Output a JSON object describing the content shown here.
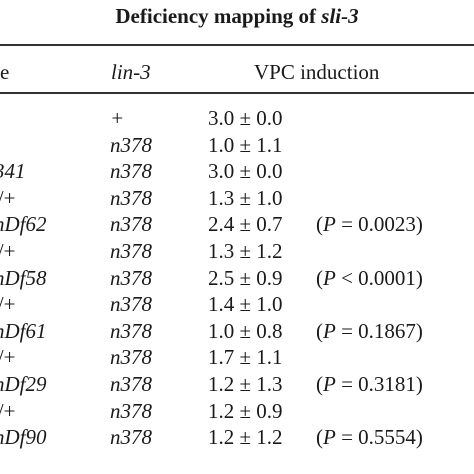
{
  "title": {
    "prefix": "Deficiency mapping of ",
    "gene": "sli-3"
  },
  "headers": {
    "genotype": "e",
    "lin3": "lin-3",
    "vpc": "VPC induction"
  },
  "rows": [
    {
      "genotype": "",
      "lin3": "+",
      "vpc": "3.0 ± 0.0",
      "p": ""
    },
    {
      "genotype": "",
      "lin3": "n378",
      "vpc": "1.0 ± 1.1",
      "p": ""
    },
    {
      "genotype": "341",
      "lin3": "n378",
      "vpc": "3.0 ± 0.0",
      "p": ""
    },
    {
      "genotype": "'/+",
      "lin3": "n378",
      "vpc": "1.3 ± 1.0",
      "p": ""
    },
    {
      "genotype": "nDf62",
      "lin3": "n378",
      "vpc": "2.4 ± 0.7",
      "p": "(P = 0.0023)"
    },
    {
      "genotype": "'/+",
      "lin3": "n378",
      "vpc": "1.3 ± 1.2",
      "p": ""
    },
    {
      "genotype": "nDf58",
      "lin3": "n378",
      "vpc": "2.5 ± 0.9",
      "p": "(P < 0.0001)"
    },
    {
      "genotype": "'/+",
      "lin3": "n378",
      "vpc": "1.4 ± 1.0",
      "p": ""
    },
    {
      "genotype": "nDf61",
      "lin3": "n378",
      "vpc": "1.0 ± 0.8",
      "p": "(P = 0.1867)"
    },
    {
      "genotype": "'/+",
      "lin3": "n378",
      "vpc": "1.7 ± 1.1",
      "p": ""
    },
    {
      "genotype": "nDf29",
      "lin3": "n378",
      "vpc": "1.2 ± 1.3",
      "p": "(P = 0.3181)"
    },
    {
      "genotype": "'/+",
      "lin3": "n378",
      "vpc": "1.2 ± 0.9",
      "p": ""
    },
    {
      "genotype": "nDf90",
      "lin3": "n378",
      "vpc": "1.2 ± 1.2",
      "p": "(P = 0.5554)"
    }
  ]
}
